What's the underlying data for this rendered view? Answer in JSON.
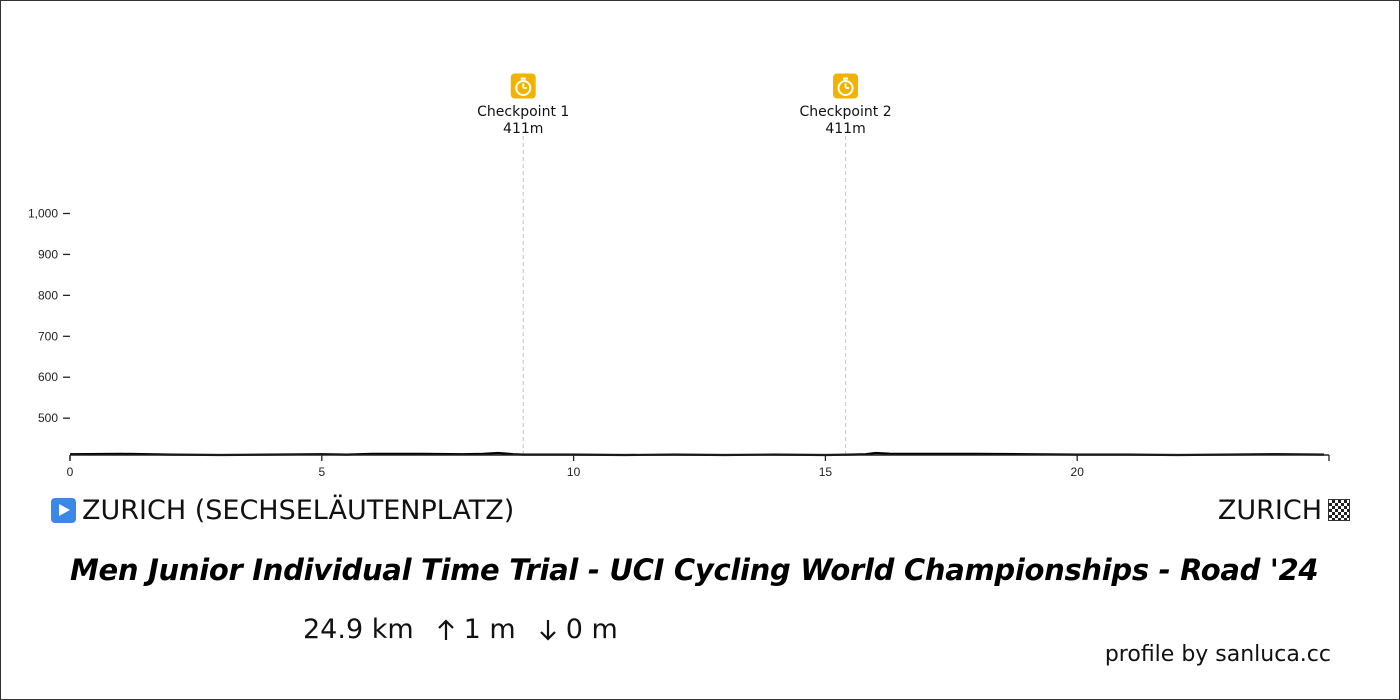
{
  "start": {
    "name": "ZURICH (SECHSELÄUTENPLATZ)",
    "icon": "play-icon",
    "icon_color": "#3b88e8"
  },
  "finish": {
    "name": "ZURICH",
    "icon": "checkered-flag-icon"
  },
  "race_title": "Men Junior Individual Time Trial - UCI Cycling World Championships - Road '24",
  "stats": {
    "distance": "24.9 km",
    "ascent_icon": "arrow-up-icon",
    "ascent": "1 m",
    "descent_icon": "arrow-down-icon",
    "descent": "0 m"
  },
  "credit": "profile by sanluca.cc",
  "colors": {
    "checkpoint_icon": "#f0b400",
    "profile_line": "#000000",
    "guide_line": "#cccccc"
  },
  "chart_data": {
    "type": "area",
    "title": "",
    "xlabel": "",
    "ylabel": "",
    "xlim": [
      0,
      25
    ],
    "ylim": [
      410,
      1000
    ],
    "x_ticks": [
      0,
      5,
      10,
      15,
      20
    ],
    "x_tick_labels": [
      "0",
      "5",
      "10",
      "15",
      "20"
    ],
    "y_ticks": [
      500,
      600,
      700,
      800,
      900,
      1000
    ],
    "y_tick_labels": [
      "500",
      "600",
      "700",
      "800",
      "900",
      "1,000"
    ],
    "grid": false,
    "series": [
      {
        "x": [
          0,
          1,
          2,
          3,
          4,
          5,
          5.5,
          6,
          7,
          7.8,
          8.2,
          8.5,
          8.8,
          9,
          10,
          11,
          12,
          13,
          14,
          15,
          15.5,
          15.8,
          16,
          16.3,
          17,
          18,
          19,
          20,
          21,
          22,
          23,
          24,
          24.9
        ],
        "y": [
          412,
          413,
          411,
          410,
          411,
          412,
          411,
          413,
          413,
          412,
          413,
          415,
          412,
          411,
          411,
          410,
          411,
          410,
          411,
          410,
          411,
          412,
          415,
          413,
          413,
          413,
          412,
          411,
          411,
          410,
          411,
          412,
          411
        ]
      }
    ],
    "checkpoints": [
      {
        "label": "Checkpoint 1",
        "elevation": "411m",
        "x": 9.0,
        "icon": "stopwatch-icon"
      },
      {
        "label": "Checkpoint 2",
        "elevation": "411m",
        "x": 15.4,
        "icon": "stopwatch-icon"
      }
    ]
  }
}
